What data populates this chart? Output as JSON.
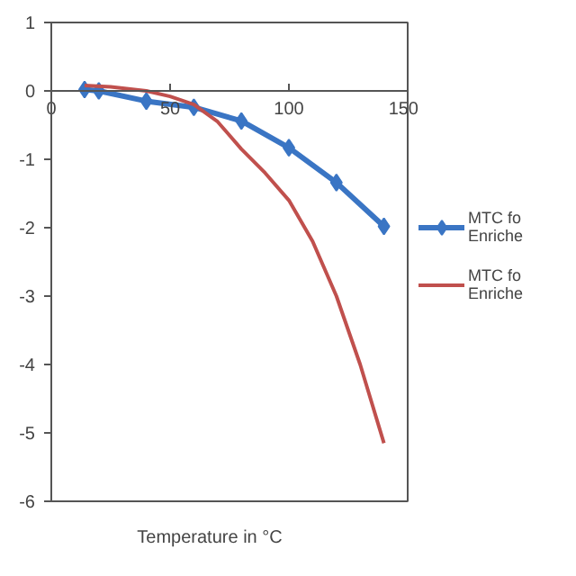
{
  "chart_data": {
    "type": "line",
    "xlabel": "Temperature in °C",
    "xlim": [
      0,
      150
    ],
    "xticks": [
      0,
      50,
      100,
      150
    ],
    "ylim": [
      -6,
      1
    ],
    "yticks": [
      -6,
      -5,
      -4,
      -3,
      -2,
      -1,
      0,
      1
    ],
    "grid": false,
    "legend": "right",
    "series": [
      {
        "name": "MTC fo\nEnriche",
        "color": "#3a75c4",
        "marker": "diamond",
        "x": [
          14,
          20,
          40,
          60,
          80,
          100,
          120,
          140
        ],
        "values": [
          0.02,
          0.0,
          -0.15,
          -0.24,
          -0.44,
          -0.83,
          -1.34,
          -1.98
        ]
      },
      {
        "name": "MTC fo\nEnriche",
        "color": "#c0504d",
        "marker": "none",
        "x": [
          14,
          25,
          40,
          50,
          60,
          70,
          80,
          90,
          100,
          110,
          120,
          130,
          140
        ],
        "values": [
          0.08,
          0.06,
          0.0,
          -0.08,
          -0.2,
          -0.45,
          -0.85,
          -1.2,
          -1.6,
          -2.2,
          -3.0,
          -4.0,
          -5.15
        ]
      }
    ]
  }
}
